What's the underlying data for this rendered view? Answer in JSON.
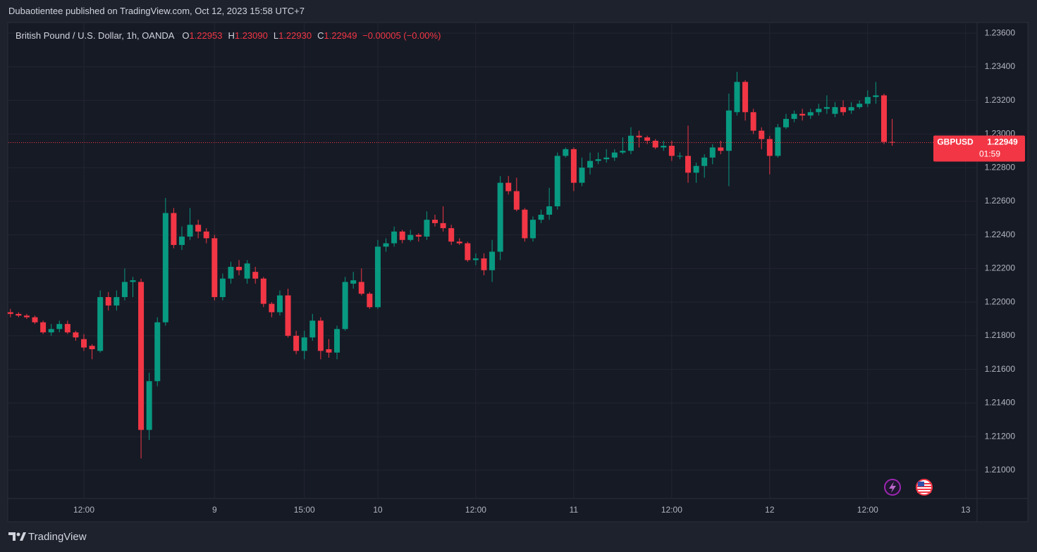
{
  "header": {
    "title": "Dubaotientee published on TradingView.com, Oct 12, 2023 15:58 UTC+7"
  },
  "footer": {
    "brand": "TradingView"
  },
  "chart_data": {
    "type": "candlestick",
    "symbol": "British Pound / U.S. Dollar, 1h, OANDA",
    "legend": [
      {
        "label": "O",
        "value": "1.22953"
      },
      {
        "label": "H",
        "value": "1.23090"
      },
      {
        "label": "L",
        "value": "1.22930"
      },
      {
        "label": "C",
        "value": "1.22949"
      }
    ],
    "change": "−0.00005 (−0.00%)",
    "price_tag": {
      "name": "GBPUSD",
      "price": "1.22949",
      "countdown": "01:59"
    },
    "up_color": "#089981",
    "down_color": "#f23645",
    "grid": true,
    "categories": [
      null,
      null,
      null,
      null,
      null,
      null,
      null,
      null,
      null,
      null,
      null,
      null,
      null,
      null,
      null,
      null,
      null,
      null,
      null,
      null,
      null,
      null,
      null,
      null,
      null,
      null,
      null,
      null,
      null,
      null,
      null,
      null,
      null,
      null,
      null,
      null,
      null,
      null,
      null,
      null,
      null,
      null,
      null,
      null,
      null,
      null,
      null,
      null,
      null,
      null,
      null,
      null,
      null,
      null,
      null,
      null,
      null,
      null,
      null,
      null,
      null,
      null,
      null,
      null,
      null,
      null,
      null,
      null,
      null,
      null,
      null,
      null,
      null,
      null,
      null,
      null,
      null,
      null,
      null,
      null,
      null,
      null,
      null,
      null,
      null,
      null,
      null,
      null,
      null,
      null,
      null,
      null,
      null,
      null,
      null,
      null,
      null,
      null,
      null,
      null,
      null,
      null,
      null,
      null,
      null,
      null,
      null,
      null,
      null
    ],
    "open": [
      1.2194,
      1.2193,
      1.2192,
      1.2191,
      1.2188,
      1.2182,
      1.2184,
      1.2187,
      1.2182,
      1.2178,
      1.2174,
      1.2171,
      1.2203,
      1.2198,
      1.2203,
      1.2212,
      1.2212,
      1.2124,
      1.2153,
      1.2188,
      1.2253,
      1.2234,
      1.2239,
      1.2246,
      1.2242,
      1.2238,
      1.2203,
      1.2214,
      1.2221,
      1.2214,
      1.2218,
      1.2214,
      1.2199,
      1.2194,
      1.2204,
      1.218,
      1.2171,
      1.2179,
      1.2189,
      1.2172,
      1.217,
      1.2184,
      1.2211,
      1.2212,
      1.2205,
      1.2197,
      1.2233,
      1.2235,
      1.2242,
      1.2237,
      1.224,
      1.2239,
      1.2249,
      1.2247,
      1.2244,
      1.2236,
      1.2235,
      1.2225,
      1.2226,
      1.2219,
      1.223,
      1.2271,
      1.2266,
      1.2255,
      1.2238,
      1.2249,
      1.2252,
      1.2257,
      1.2287,
      1.2291,
      1.2271,
      1.228,
      1.2284,
      1.2285,
      1.2286,
      1.2289,
      1.229,
      1.2299,
      1.2298,
      1.2296,
      1.2292,
      1.2293,
      1.2287,
      1.2287,
      1.2277,
      1.2281,
      1.2286,
      1.2292,
      1.229,
      1.2313,
      1.2331,
      1.2313,
      1.2302,
      1.2297,
      1.2287,
      1.2304,
      1.2309,
      1.2312,
      1.2311,
      1.2313,
      1.2315,
      1.2312,
      1.2316,
      1.2314,
      1.2316,
      1.2318,
      1.2322,
      1.2323,
      1.22953
    ],
    "high": [
      1.2196,
      1.2194,
      1.2193,
      1.2192,
      1.2189,
      1.2187,
      1.2189,
      1.2189,
      1.2183,
      1.2181,
      1.2175,
      1.2207,
      1.2206,
      1.2207,
      1.222,
      1.2215,
      1.2214,
      1.2158,
      1.2191,
      1.2262,
      1.2256,
      1.2245,
      1.2256,
      1.2249,
      1.2244,
      1.224,
      1.2217,
      1.2224,
      1.2225,
      1.2225,
      1.2221,
      1.2215,
      1.22,
      1.2207,
      1.2208,
      1.2183,
      1.2183,
      1.2193,
      1.2191,
      1.2178,
      1.2186,
      1.2215,
      1.2218,
      1.222,
      1.2206,
      1.2237,
      1.2238,
      1.2245,
      1.2243,
      1.2243,
      1.2241,
      1.2254,
      1.2252,
      1.2257,
      1.2246,
      1.2238,
      1.2236,
      1.2229,
      1.2229,
      1.2237,
      1.2275,
      1.2275,
      1.2274,
      1.2256,
      1.2251,
      1.2255,
      1.2268,
      1.2289,
      1.2292,
      1.2292,
      1.2286,
      1.2289,
      1.2289,
      1.2291,
      1.2291,
      1.2298,
      1.2304,
      1.2302,
      1.2299,
      1.2297,
      1.2296,
      1.2296,
      1.2289,
      1.2305,
      1.2283,
      1.2288,
      1.2294,
      1.2296,
      1.2324,
      1.2337,
      1.2332,
      1.2315,
      1.2304,
      1.2299,
      1.2306,
      1.2312,
      1.2314,
      1.2315,
      1.2315,
      1.2318,
      1.2323,
      1.2319,
      1.232,
      1.2319,
      1.232,
      1.2326,
      1.2331,
      1.2324,
      1.2309
    ],
    "low": [
      1.2191,
      1.2191,
      1.219,
      1.2187,
      1.2181,
      1.218,
      1.2182,
      1.2181,
      1.2177,
      1.2171,
      1.2166,
      1.217,
      1.2195,
      1.2195,
      1.2201,
      1.2203,
      1.2107,
      1.2118,
      1.215,
      1.2186,
      1.2232,
      1.2231,
      1.2237,
      1.2238,
      1.2235,
      1.2201,
      1.2201,
      1.2211,
      1.2216,
      1.2211,
      1.2211,
      1.2197,
      1.2191,
      1.2192,
      1.2179,
      1.2169,
      1.2166,
      1.2177,
      1.2166,
      1.2167,
      1.2166,
      1.2183,
      1.2208,
      1.2204,
      1.2196,
      1.2196,
      1.223,
      1.2233,
      1.2235,
      1.2236,
      1.2236,
      1.2237,
      1.2245,
      1.2242,
      1.2234,
      1.2234,
      1.2224,
      1.2222,
      1.2216,
      1.2212,
      1.2225,
      1.2264,
      1.2254,
      1.2236,
      1.2236,
      1.2247,
      1.2249,
      1.2255,
      1.2286,
      1.2266,
      1.2269,
      1.2276,
      1.2282,
      1.2283,
      1.2284,
      1.2288,
      1.2288,
      1.2292,
      1.2294,
      1.2291,
      1.229,
      1.2284,
      1.2285,
      1.2271,
      1.2271,
      1.2274,
      1.2282,
      1.2288,
      1.2269,
      1.2311,
      1.2308,
      1.23,
      1.2291,
      1.2276,
      1.2286,
      1.2303,
      1.2307,
      1.2308,
      1.2309,
      1.2311,
      1.2312,
      1.231,
      1.2311,
      1.2312,
      1.2315,
      1.2316,
      1.2318,
      1.2294,
      1.2293
    ],
    "close": [
      1.2193,
      1.2192,
      1.2191,
      1.2188,
      1.2182,
      1.2184,
      1.2187,
      1.2182,
      1.2179,
      1.2173,
      1.2172,
      1.2203,
      1.2198,
      1.2203,
      1.2212,
      1.2213,
      1.2124,
      1.2153,
      1.2188,
      1.2253,
      1.2234,
      1.2239,
      1.2246,
      1.2242,
      1.2238,
      1.2203,
      1.2214,
      1.2221,
      1.2219,
      1.2223,
      1.2214,
      1.2199,
      1.2194,
      1.2204,
      1.218,
      1.2171,
      1.2179,
      1.2189,
      1.2171,
      1.217,
      1.2184,
      1.2212,
      1.2213,
      1.2205,
      1.2197,
      1.2233,
      1.2235,
      1.2242,
      1.2237,
      1.224,
      1.2239,
      1.2249,
      1.2247,
      1.2244,
      1.2236,
      1.2235,
      1.2225,
      1.2226,
      1.2219,
      1.223,
      1.2271,
      1.2266,
      1.2255,
      1.2238,
      1.2249,
      1.2252,
      1.2257,
      1.2287,
      1.2291,
      1.2271,
      1.228,
      1.2284,
      1.2285,
      1.2286,
      1.2289,
      1.229,
      1.2299,
      1.2298,
      1.2296,
      1.2292,
      1.2293,
      1.2287,
      1.2287,
      1.2277,
      1.2281,
      1.2286,
      1.2292,
      1.229,
      1.2314,
      1.2331,
      1.2313,
      1.2302,
      1.2297,
      1.2287,
      1.2304,
      1.2309,
      1.2312,
      1.2311,
      1.2313,
      1.2315,
      1.2316,
      1.2316,
      1.2313,
      1.2316,
      1.2318,
      1.2322,
      1.2323,
      1.22953,
      1.22949
    ],
    "xlim": [
      -0.24,
      118.4
    ],
    "xticks": [
      {
        "value": 9,
        "label": "12:00"
      },
      {
        "value": 25,
        "label": "9"
      },
      {
        "value": 36,
        "label": "15:00"
      },
      {
        "value": 45,
        "label": "10"
      },
      {
        "value": 57,
        "label": "12:00"
      },
      {
        "value": 69,
        "label": "11"
      },
      {
        "value": 81,
        "label": "12:00"
      },
      {
        "value": 93,
        "label": "12"
      },
      {
        "value": 105,
        "label": "12:00"
      },
      {
        "value": 117,
        "label": "13"
      }
    ],
    "ylim": [
      1.20832,
      1.23659
    ],
    "yticks": [
      {
        "value": 1.21,
        "label": "1.21000"
      },
      {
        "value": 1.212,
        "label": "1.21200"
      },
      {
        "value": 1.214,
        "label": "1.21400"
      },
      {
        "value": 1.216,
        "label": "1.21600"
      },
      {
        "value": 1.218,
        "label": "1.21800"
      },
      {
        "value": 1.22,
        "label": "1.22000"
      },
      {
        "value": 1.222,
        "label": "1.22200"
      },
      {
        "value": 1.224,
        "label": "1.22400"
      },
      {
        "value": 1.226,
        "label": "1.22600"
      },
      {
        "value": 1.228,
        "label": "1.22800"
      },
      {
        "value": 1.23,
        "label": "1.23000"
      },
      {
        "value": 1.232,
        "label": "1.23200"
      },
      {
        "value": 1.234,
        "label": "1.23400"
      },
      {
        "value": 1.236,
        "label": "1.23600"
      }
    ]
  }
}
